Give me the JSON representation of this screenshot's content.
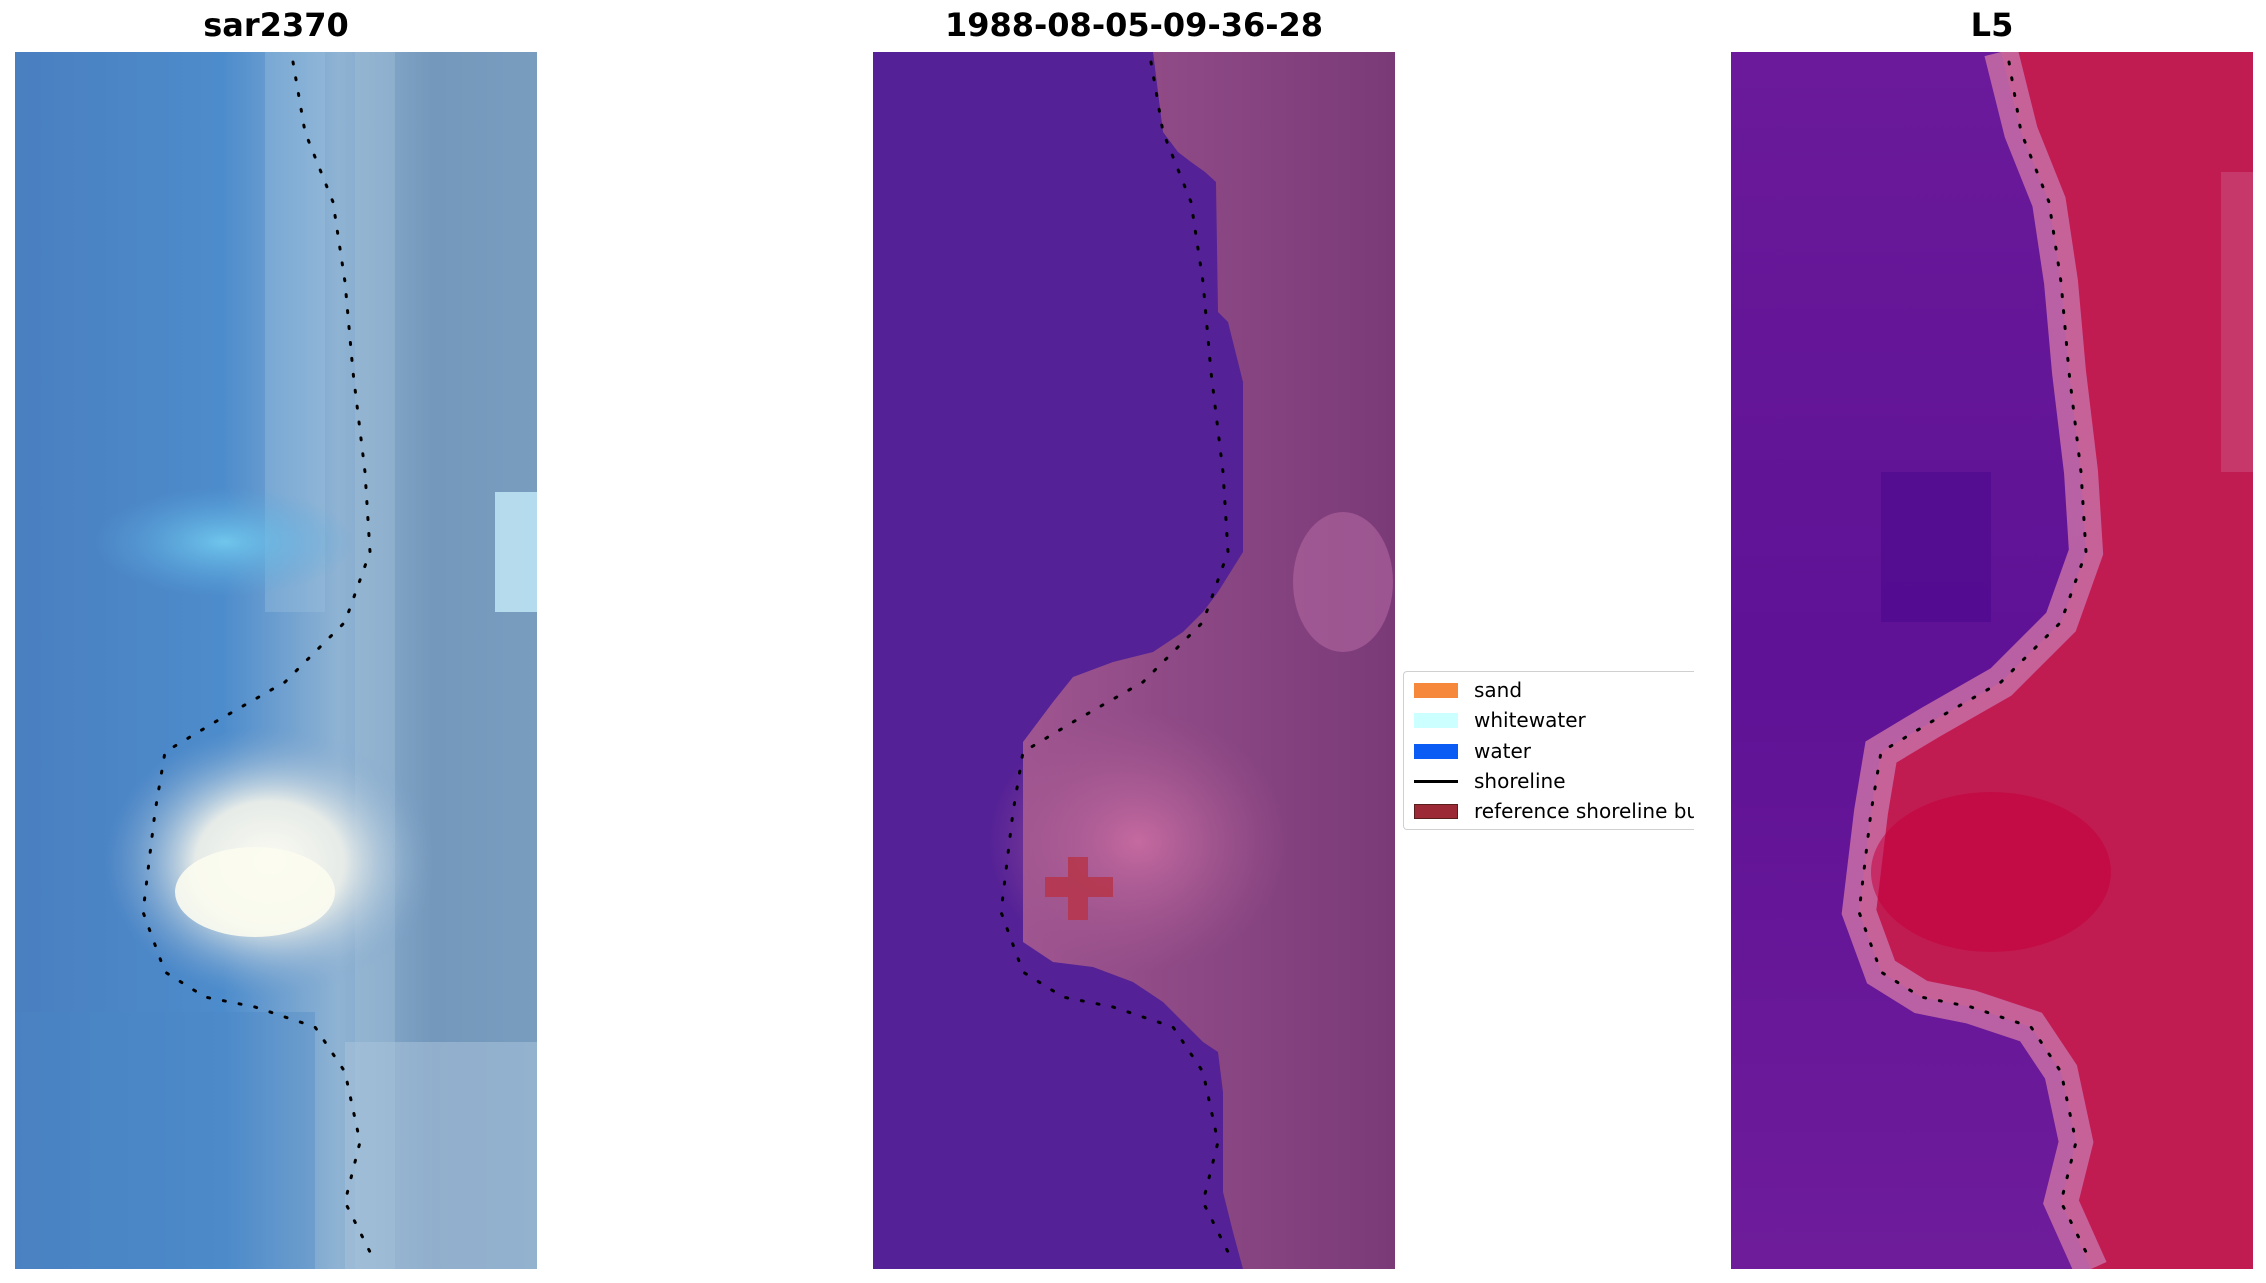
{
  "panels": [
    {
      "title": "sar2370"
    },
    {
      "title": "1988-08-05-09-36-28"
    },
    {
      "title": "L5"
    }
  ],
  "legend": {
    "items": [
      {
        "label": "sand",
        "color": "#f5883a"
      },
      {
        "label": "whitewater",
        "color": "#ccffff"
      },
      {
        "label": "water",
        "color": "#0a5cf5"
      },
      {
        "label": "shoreline",
        "color": "#000000"
      },
      {
        "label": "reference shoreline buffer",
        "color": "#9b2a36"
      }
    ]
  },
  "colors": {
    "rgb_water": "#4a84c4",
    "rgb_whitewater": "#f4f4ee",
    "class_water": "#542196",
    "class_land": "#8d4a86",
    "index_water": "#6a1898",
    "index_land": "#c2184a"
  }
}
